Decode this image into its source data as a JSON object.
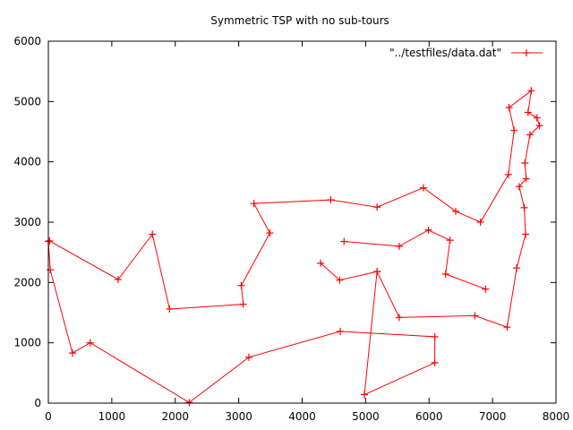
{
  "chart_data": {
    "type": "line",
    "title": "Symmetric TSP with no sub-tours",
    "xlabel": "",
    "ylabel": "",
    "xlim": [
      0,
      8000
    ],
    "ylim": [
      0,
      6000
    ],
    "xticks": [
      0,
      1000,
      2000,
      3000,
      4000,
      5000,
      6000,
      7000,
      8000
    ],
    "yticks": [
      0,
      1000,
      2000,
      3000,
      4000,
      5000,
      6000
    ],
    "grid": false,
    "legend_position": "top-right",
    "series": [
      {
        "name": "\"../testfiles/data.dat\"",
        "color": "#ff0000",
        "marker": "plus",
        "points": [
          [
            0,
            2680
          ],
          [
            30,
            2210
          ],
          [
            380,
            830
          ],
          [
            660,
            1000
          ],
          [
            2220,
            10
          ],
          [
            3160,
            760
          ],
          [
            4600,
            1190
          ],
          [
            6090,
            1100
          ],
          [
            6090,
            670
          ],
          [
            4980,
            140
          ],
          [
            5180,
            2180
          ],
          [
            5530,
            1420
          ],
          [
            6720,
            1450
          ],
          [
            7230,
            1260
          ],
          [
            7380,
            2240
          ],
          [
            7520,
            2800
          ],
          [
            7500,
            3240
          ],
          [
            7420,
            3590
          ],
          [
            7530,
            3720
          ],
          [
            7510,
            3980
          ],
          [
            7590,
            4450
          ],
          [
            7740,
            4600
          ],
          [
            7700,
            4730
          ],
          [
            7560,
            4820
          ],
          [
            7610,
            5180
          ],
          [
            7260,
            4900
          ],
          [
            7340,
            4520
          ],
          [
            7250,
            3790
          ],
          [
            6810,
            3000
          ],
          [
            6420,
            3180
          ],
          [
            5910,
            3570
          ],
          [
            5180,
            3250
          ],
          [
            4450,
            3370
          ],
          [
            3240,
            3310
          ],
          [
            3490,
            2820
          ],
          [
            3040,
            1950
          ],
          [
            3070,
            1640
          ],
          [
            1910,
            1560
          ],
          [
            1640,
            2800
          ],
          [
            1100,
            2050
          ],
          [
            20,
            2690
          ]
        ]
      },
      {
        "name": "",
        "color": "#ff0000",
        "marker": "plus",
        "points": [
          [
            4290,
            2320
          ],
          [
            4590,
            2040
          ],
          [
            5180,
            2180
          ]
        ]
      },
      {
        "name": "",
        "color": "#ff0000",
        "marker": "plus",
        "points": [
          [
            4660,
            2680
          ],
          [
            5530,
            2600
          ],
          [
            5990,
            2870
          ],
          [
            6330,
            2700
          ],
          [
            6260,
            2140
          ],
          [
            6890,
            1890
          ]
        ]
      }
    ]
  }
}
